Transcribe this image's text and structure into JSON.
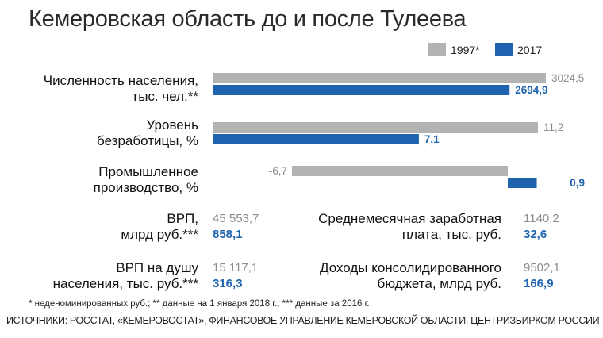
{
  "title": "Кемеровская область до и после Тулеева",
  "colors": {
    "y1997": "#b3b3b3",
    "y2017": "#1f62ad",
    "label1997": "#8c8c8c",
    "label2017": "#1e64b0"
  },
  "chart_data": {
    "type": "bar",
    "orientation": "horizontal",
    "series_names": [
      "1997*",
      "2017"
    ],
    "legend": [
      "1997*",
      "2017"
    ],
    "legend_position": "top-right",
    "categories": [
      {
        "label_line1": "Численность населения,",
        "label_line2": "тыс. чел.**",
        "values": [
          3024.5,
          2694.9
        ],
        "value_labels": [
          "3024,5",
          "2694,9"
        ]
      },
      {
        "label_line1": "Уровень",
        "label_line2": "безработицы, %",
        "values": [
          11.2,
          7.1
        ],
        "value_labels": [
          "11,2",
          "7,1"
        ]
      },
      {
        "label_line1": "Промышленное",
        "label_line2": "производство, %",
        "values": [
          -6.7,
          0.9
        ],
        "value_labels": [
          "-6,7",
          "0,9"
        ]
      }
    ]
  },
  "stats": [
    {
      "label_line1": "ВРП,",
      "label_line2": "млрд руб.***",
      "v1997": "45 553,7",
      "v2017": "858,1"
    },
    {
      "label_line1": "Среднемесячная заработная",
      "label_line2": "плата, тыс. руб.",
      "v1997": "1140,2",
      "v2017": "32,6"
    },
    {
      "label_line1": "ВРП на душу",
      "label_line2": "населения, тыс. руб.***",
      "v1997": "15 117,1",
      "v2017": "316,3"
    },
    {
      "label_line1": "Доходы консолидированного",
      "label_line2": "бюджета, млрд руб.",
      "v1997": "9502,1",
      "v2017": "166,9"
    }
  ],
  "footnote": "* неденоминированных руб.; ** данные на 1 января 2018 г.; *** данные за 2016 г.",
  "sources": "ИСТОЧНИКИ: РОССТАТ, «КЕМЕРОВОСТАТ», ФИНАНСОВОЕ УПРАВЛЕНИЕ КЕМЕРОВСКОЙ ОБЛАСТИ, ЦЕНТРИЗБИРКОМ РОССИИ"
}
